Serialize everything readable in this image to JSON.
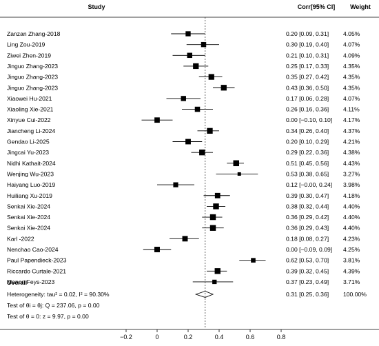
{
  "chart_data": {
    "type": "forest",
    "headers": {
      "study": "Study",
      "ci": "Corr[95% CI]",
      "weight": "Weight"
    },
    "studies": [
      {
        "label": "Zanzan Zhang-2018",
        "est": 0.2,
        "lo": 0.09,
        "hi": 0.31,
        "ci_text": "0.20 [0.09, 0.31]",
        "weight": "4.05%"
      },
      {
        "label": "Ling Zou-2019",
        "est": 0.3,
        "lo": 0.19,
        "hi": 0.4,
        "ci_text": "0.30 [0.19, 0.40]",
        "weight": "4.07%"
      },
      {
        "label": "Ziwei Zhen-2019",
        "est": 0.21,
        "lo": 0.1,
        "hi": 0.31,
        "ci_text": "0.21 [0.10, 0.31]",
        "weight": "4.09%"
      },
      {
        "label": "Jinguo Zhang-2023",
        "est": 0.25,
        "lo": 0.17,
        "hi": 0.33,
        "ci_text": "0.25 [0.17, 0.33]",
        "weight": "4.35%"
      },
      {
        "label": "Jinguo Zhang-2023",
        "est": 0.35,
        "lo": 0.27,
        "hi": 0.42,
        "ci_text": "0.35 [0.27, 0.42]",
        "weight": "4.35%"
      },
      {
        "label": "Jinguo Zhang-2023",
        "est": 0.43,
        "lo": 0.36,
        "hi": 0.5,
        "ci_text": "0.43 [0.36, 0.50]",
        "weight": "4.35%"
      },
      {
        "label": "Xiaowei Hu-2021",
        "est": 0.17,
        "lo": 0.06,
        "hi": 0.28,
        "ci_text": "0.17 [0.06, 0.28]",
        "weight": "4.07%"
      },
      {
        "label": "Xiaoling Xie-2021",
        "est": 0.26,
        "lo": 0.16,
        "hi": 0.36,
        "ci_text": "0.26 [0.16, 0.36]",
        "weight": "4.11%"
      },
      {
        "label": "Xinyue Cui-2022",
        "est": 0.0,
        "lo": -0.1,
        "hi": 0.1,
        "ci_text": "0.00 [−0.10, 0.10]",
        "weight": "4.17%"
      },
      {
        "label": "Jiancheng Li-2024",
        "est": 0.34,
        "lo": 0.26,
        "hi": 0.4,
        "ci_text": "0.34 [0.26, 0.40]",
        "weight": "4.37%"
      },
      {
        "label": "Gendao Li-2025",
        "est": 0.2,
        "lo": 0.1,
        "hi": 0.29,
        "ci_text": "0.20 [0.10, 0.29]",
        "weight": "4.21%"
      },
      {
        "label": "Jingcai Yu-2023",
        "est": 0.29,
        "lo": 0.22,
        "hi": 0.36,
        "ci_text": "0.29 [0.22, 0.36]",
        "weight": "4.38%"
      },
      {
        "label": "Nidhi Kathait-2024",
        "est": 0.51,
        "lo": 0.45,
        "hi": 0.56,
        "ci_text": "0.51 [0.45, 0.56]",
        "weight": "4.43%"
      },
      {
        "label": "Wenjing Wu-2023",
        "est": 0.53,
        "lo": 0.38,
        "hi": 0.65,
        "ci_text": "0.53 [0.38, 0.65]",
        "weight": "3.27%"
      },
      {
        "label": "Haiyang Luo-2019",
        "est": 0.12,
        "lo": 0.0,
        "hi": 0.24,
        "ci_text": "0.12 [−0.00, 0.24]",
        "weight": "3.98%"
      },
      {
        "label": "Huiliang Xu-2019",
        "est": 0.39,
        "lo": 0.3,
        "hi": 0.47,
        "ci_text": "0.39 [0.30, 0.47]",
        "weight": "4.18%"
      },
      {
        "label": "Senkai Xie-2024",
        "est": 0.38,
        "lo": 0.32,
        "hi": 0.44,
        "ci_text": "0.38 [0.32, 0.44]",
        "weight": "4.40%"
      },
      {
        "label": "Senkai Xie-2024",
        "est": 0.36,
        "lo": 0.29,
        "hi": 0.42,
        "ci_text": "0.36 [0.29, 0.42]",
        "weight": "4.40%"
      },
      {
        "label": "Senkai Xie-2024",
        "est": 0.36,
        "lo": 0.29,
        "hi": 0.43,
        "ci_text": "0.36 [0.29, 0.43]",
        "weight": "4.40%"
      },
      {
        "label": "Karl -2022",
        "est": 0.18,
        "lo": 0.08,
        "hi": 0.27,
        "ci_text": "0.18 [0.08, 0.27]",
        "weight": "4.23%"
      },
      {
        "label": "Nenchao Cao-2024",
        "est": 0.0,
        "lo": -0.09,
        "hi": 0.09,
        "ci_text": "0.00 [−0.09, 0.09]",
        "weight": "4.25%"
      },
      {
        "label": "Paul Papendieck-2023",
        "est": 0.62,
        "lo": 0.53,
        "hi": 0.7,
        "ci_text": "0.62 [0.53, 0.70]",
        "weight": "3.81%"
      },
      {
        "label": "Riccardo Curtale-2021",
        "est": 0.39,
        "lo": 0.32,
        "hi": 0.45,
        "ci_text": "0.39 [0.32, 0.45]",
        "weight": "4.39%"
      },
      {
        "label": "Manon Feys-2023",
        "est": 0.37,
        "lo": 0.23,
        "hi": 0.49,
        "ci_text": "0.37 [0.23, 0.49]",
        "weight": "3.71%"
      }
    ],
    "overall": {
      "label": "Overall",
      "est": 0.31,
      "lo": 0.25,
      "hi": 0.36,
      "ci_text": "0.31 [0.25, 0.36]",
      "weight": "100.00%"
    },
    "stats": [
      "Heterogeneity: tau² = 0.02, I² = 90.30%",
      "Test of θi = θj: Q = 237.06, p = 0.00",
      "Test of θ = 0: z = 9.97, p = 0.00"
    ],
    "x_ticks": [
      -0.2,
      0,
      0.2,
      0.4,
      0.6,
      0.8
    ],
    "x_tick_labels": [
      "−0.2",
      "0",
      "0.2",
      "0.4",
      "0.6",
      "0.8"
    ],
    "xlim": [
      -0.2,
      0.8
    ],
    "reference_line": 0.31,
    "colors": {
      "marker": "#000000",
      "ci_line": "#000000",
      "ref_line": "#333333"
    }
  }
}
